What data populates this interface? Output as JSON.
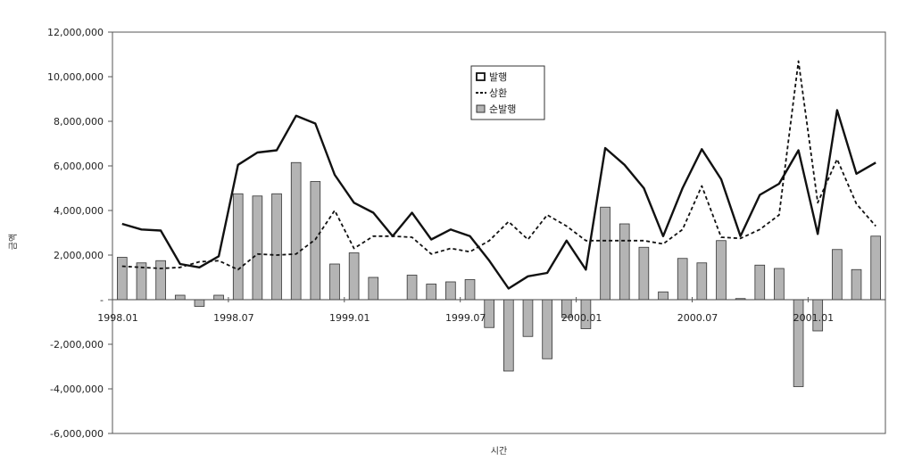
{
  "chart_data": {
    "type": "bar",
    "xlabel": "시간",
    "ylabel": "금액",
    "ylim": [
      -6000000,
      12000000
    ],
    "yticks": [
      12000000,
      10000000,
      8000000,
      6000000,
      4000000,
      2000000,
      0,
      -2000000,
      -4000000,
      -6000000
    ],
    "ytick_labels": [
      "12,000,000",
      "10,000,000",
      "8,000,000",
      "6,000,000",
      "4,000,000",
      "2,000,000",
      "-",
      "-2,000,000",
      "-4,000,000",
      "-6,000,000"
    ],
    "xtick_labels": [
      {
        "index": 0,
        "label": "1998.01"
      },
      {
        "index": 6,
        "label": "1998.07"
      },
      {
        "index": 12,
        "label": "1999.01"
      },
      {
        "index": 18,
        "label": "1999.07"
      },
      {
        "index": 24,
        "label": "2000.01"
      },
      {
        "index": 30,
        "label": "2000.07"
      },
      {
        "index": 36,
        "label": "2001.01"
      }
    ],
    "grid": false,
    "legend": "top-center",
    "series": [
      {
        "name": "발행",
        "kind": "line",
        "style": "solid",
        "values": [
          3400000,
          3150000,
          3100000,
          1600000,
          1450000,
          1950000,
          6050000,
          6600000,
          6700000,
          8250000,
          7900000,
          5600000,
          4350000,
          3900000,
          2850000,
          3900000,
          2700000,
          3150000,
          2850000,
          1750000,
          500000,
          1050000,
          1200000,
          2650000,
          1350000,
          6800000,
          6050000,
          5000000,
          2850000,
          5000000,
          6750000,
          5400000,
          2850000,
          4700000,
          5200000,
          6700000,
          2950000,
          8500000,
          5650000,
          6150000
        ]
      },
      {
        "name": "상환",
        "kind": "line",
        "style": "dashed",
        "values": [
          1500000,
          1450000,
          1400000,
          1450000,
          1700000,
          1750000,
          1350000,
          2050000,
          2000000,
          2050000,
          2700000,
          4000000,
          2300000,
          2850000,
          2850000,
          2800000,
          2050000,
          2300000,
          2150000,
          2650000,
          3500000,
          2700000,
          3800000,
          3300000,
          2650000,
          2650000,
          2650000,
          2650000,
          2500000,
          3150000,
          5100000,
          2800000,
          2750000,
          3150000,
          3800000,
          10700000,
          4350000,
          6300000,
          4300000,
          3300000
        ]
      },
      {
        "name": "순발행",
        "kind": "bar",
        "values": [
          1900000,
          1650000,
          1750000,
          200000,
          -300000,
          200000,
          4750000,
          4650000,
          4750000,
          6150000,
          5300000,
          1600000,
          2100000,
          1000000,
          0,
          1100000,
          700000,
          800000,
          900000,
          -1250000,
          -3200000,
          -1650000,
          -2650000,
          -800000,
          -1300000,
          4150000,
          3400000,
          2350000,
          350000,
          1850000,
          1650000,
          2650000,
          50000,
          1550000,
          1400000,
          -3900000,
          -1400000,
          2250000,
          1350000,
          2850000
        ]
      }
    ]
  },
  "colors": {
    "line_primary": "#111111",
    "line_dashed": "#111111",
    "bar_fill": "#b4b4b4",
    "bar_stroke": "#333333",
    "axis": "#555555"
  }
}
